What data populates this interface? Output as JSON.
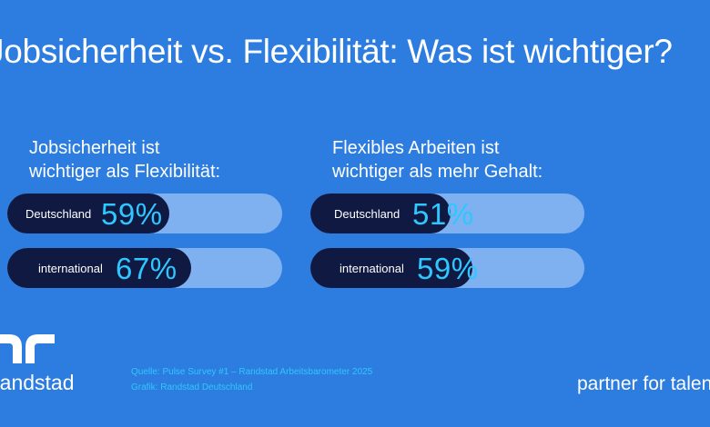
{
  "title": "Jobsicherheit vs. Flexibilität: Was ist wichtiger?",
  "panels": [
    {
      "heading_line1": "Jobsicherheit ist",
      "heading_line2": "wichtiger als Flexibilität:",
      "bars": [
        {
          "label": "Deutschland",
          "value_text": "59%",
          "value": 59
        },
        {
          "label": "international",
          "value_text": "67%",
          "value": 67
        }
      ]
    },
    {
      "heading_line1": "Flexibles Arbeiten ist",
      "heading_line2": "wichtiger als mehr Gehalt:",
      "bars": [
        {
          "label": "Deutschland",
          "value_text": "51%",
          "value": 51
        },
        {
          "label": "international",
          "value_text": "59%",
          "value": 59
        }
      ]
    }
  ],
  "footer": {
    "brand": "randstad",
    "source_line1": "Quelle: Pulse Survey #1 – Randstad Arbeitsbarometer 2025",
    "source_line2": "Grafik: Randstad Deutschland",
    "tagline": "partner for talent"
  },
  "colors": {
    "background": "#2d7de0",
    "bar_fill": "#0f1941",
    "bar_track": "#7fb0ef",
    "accent": "#2fc7ff"
  }
}
